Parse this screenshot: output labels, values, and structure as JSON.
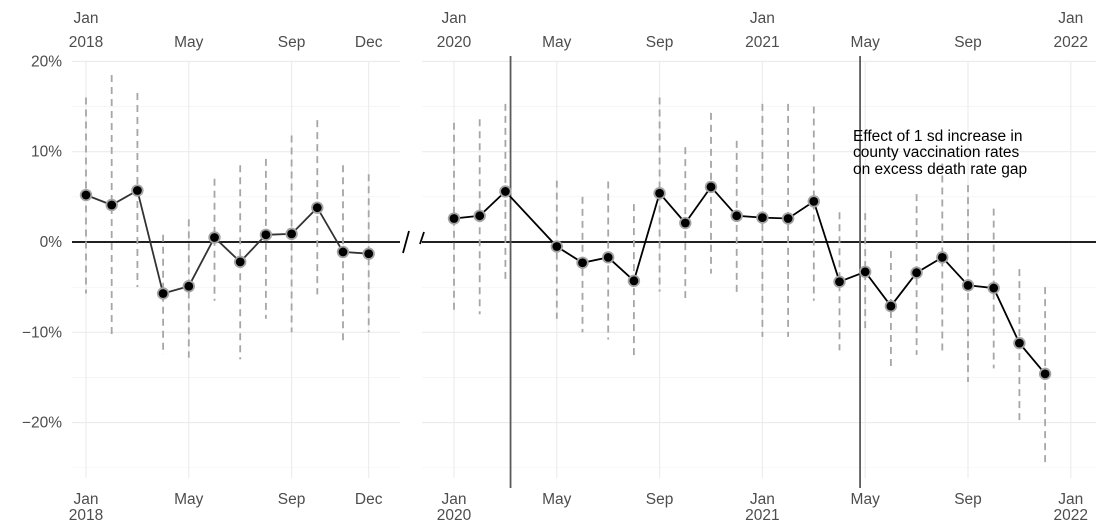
{
  "chart_data": [
    {
      "type": "line",
      "panel": "2018",
      "ylim": [
        -0.26,
        0.2
      ],
      "y_ticks": [
        {
          "value": 0.2,
          "label": "20%"
        },
        {
          "value": 0.1,
          "label": "10%"
        },
        {
          "value": 0.0,
          "label": "0%"
        },
        {
          "value": -0.1,
          "label": "−10%"
        },
        {
          "value": -0.2,
          "label": "−20%"
        }
      ],
      "x_ticks": [
        {
          "date": "2018-01",
          "label": [
            "Jan",
            "2018"
          ]
        },
        {
          "date": "2018-05",
          "label": [
            "May"
          ]
        },
        {
          "date": "2018-09",
          "label": [
            "Sep"
          ]
        },
        {
          "date": "2018-12",
          "label": [
            "Dec"
          ]
        }
      ],
      "series": [
        {
          "x": [
            "2018-01",
            "2018-02",
            "2018-03",
            "2018-04",
            "2018-05",
            "2018-06",
            "2018-07",
            "2018-08",
            "2018-09",
            "2018-10",
            "2018-11",
            "2018-12"
          ],
          "y": [
            0.052,
            0.041,
            0.057,
            -0.057,
            -0.049,
            0.005,
            -0.022,
            0.008,
            0.009,
            0.038,
            -0.011,
            -0.013
          ],
          "lo": [
            -0.057,
            -0.103,
            -0.05,
            -0.125,
            -0.128,
            -0.065,
            -0.13,
            -0.085,
            -0.1,
            -0.058,
            -0.11,
            -0.1
          ],
          "hi": [
            0.16,
            0.185,
            0.165,
            0.008,
            0.025,
            0.07,
            0.085,
            0.092,
            0.118,
            0.135,
            0.085,
            0.075
          ]
        }
      ]
    },
    {
      "type": "line",
      "panel": "2020-2021",
      "ylim": [
        -0.26,
        0.2
      ],
      "x_ticks": [
        {
          "date": "2020-01",
          "label": [
            "Jan",
            "2020"
          ]
        },
        {
          "date": "2020-05",
          "label": [
            "May"
          ]
        },
        {
          "date": "2020-09",
          "label": [
            "Sep"
          ]
        },
        {
          "date": "2021-01",
          "label": [
            "Jan",
            "2021"
          ]
        },
        {
          "date": "2021-05",
          "label": [
            "May"
          ]
        },
        {
          "date": "2021-09",
          "label": [
            "Sep"
          ]
        },
        {
          "date": "2022-01",
          "label": [
            "Jan",
            "2022"
          ]
        }
      ],
      "vlines": [
        "2020-03-07",
        "2021-04-25"
      ],
      "annotation": [
        "Effect of 1 sd increase in",
        "county vaccination rates",
        "on excess death rate gap"
      ],
      "series": [
        {
          "x": [
            "2020-01",
            "2020-02",
            "2020-03",
            "2020-04",
            "2020-05",
            "2020-06",
            "2020-07",
            "2020-08",
            "2020-09",
            "2020-10",
            "2020-11",
            "2020-12",
            "2021-01",
            "2021-02",
            "2021-03",
            "2021-04",
            "2021-05",
            "2021-06",
            "2021-07",
            "2021-08",
            "2021-09",
            "2021-10",
            "2021-11",
            "2021-12"
          ],
          "y": [
            0.026,
            0.029,
            0.056,
            null,
            -0.005,
            -0.023,
            -0.017,
            -0.043,
            0.054,
            0.021,
            0.061,
            0.029,
            0.027,
            0.026,
            0.045,
            -0.044,
            -0.033,
            -0.071,
            -0.034,
            -0.017,
            -0.048,
            -0.051,
            -0.112,
            -0.146
          ],
          "lo": [
            -0.075,
            -0.08,
            -0.042,
            null,
            -0.085,
            -0.1,
            -0.108,
            -0.13,
            -0.055,
            -0.062,
            -0.035,
            -0.06,
            -0.105,
            -0.105,
            -0.065,
            -0.12,
            -0.1,
            -0.14,
            -0.125,
            -0.125,
            -0.155,
            -0.14,
            -0.2,
            -0.245
          ],
          "hi": [
            0.132,
            0.136,
            0.153,
            null,
            0.068,
            0.05,
            0.067,
            0.042,
            0.16,
            0.105,
            0.143,
            0.112,
            0.153,
            0.153,
            0.15,
            0.033,
            0.032,
            -0.01,
            0.053,
            0.087,
            0.063,
            0.037,
            -0.03,
            -0.05
          ]
        }
      ]
    }
  ]
}
